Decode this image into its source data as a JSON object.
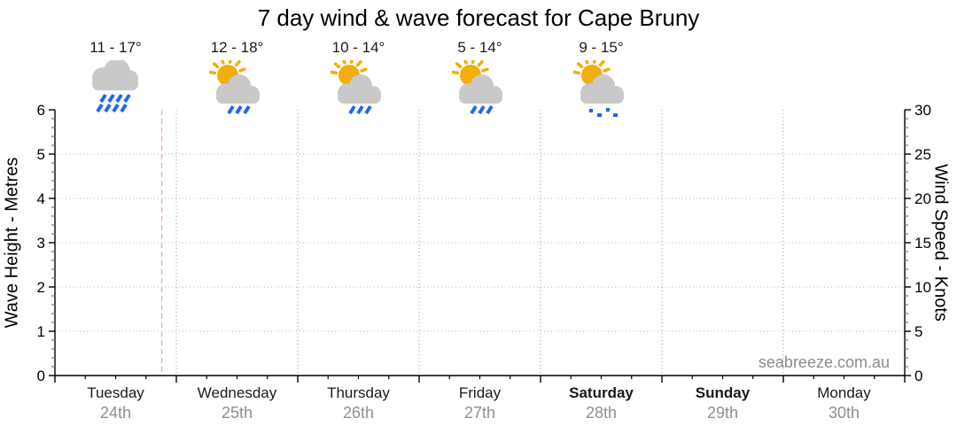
{
  "title": "7 day wind & wave forecast for Cape Bruny",
  "watermark": "seabreeze.com.au",
  "days": [
    {
      "name": "Tuesday",
      "date": "24th",
      "temp": "11 - 17°",
      "icon": "rain-cloud",
      "emphasis": false
    },
    {
      "name": "Wednesday",
      "date": "25th",
      "temp": "12 - 18°",
      "icon": "sun-cloud-rain",
      "emphasis": false
    },
    {
      "name": "Thursday",
      "date": "26th",
      "temp": "10 - 14°",
      "icon": "sun-cloud-rain",
      "emphasis": false
    },
    {
      "name": "Friday",
      "date": "27th",
      "temp": "5 - 14°",
      "icon": "sun-cloud-rain",
      "emphasis": false
    },
    {
      "name": "Saturday",
      "date": "28th",
      "temp": "9 - 15°",
      "icon": "sun-cloud-drizzle",
      "emphasis": true
    },
    {
      "name": "Sunday",
      "date": "29th",
      "temp": "",
      "icon": "",
      "emphasis": true
    },
    {
      "name": "Monday",
      "date": "30th",
      "temp": "",
      "icon": "",
      "emphasis": false
    }
  ],
  "chart_data": {
    "type": "line",
    "title": "7 day wind & wave forecast for Cape Bruny",
    "series": [],
    "x_axis": {
      "categories": [
        "Tuesday",
        "Wednesday",
        "Thursday",
        "Friday",
        "Saturday",
        "Sunday",
        "Monday"
      ],
      "dates": [
        "24th",
        "25th",
        "26th",
        "27th",
        "28th",
        "29th",
        "30th"
      ],
      "sub_ticks_per_day": 4,
      "grid_at_day_boundaries": true
    },
    "left_axis": {
      "label": "Wave Height - Metres",
      "range": [
        0,
        6
      ],
      "ticks": [
        0,
        1,
        2,
        3,
        4,
        5,
        6
      ],
      "minor_tick": 0.2,
      "gridlines": [
        1,
        2,
        3,
        4,
        5
      ]
    },
    "right_axis": {
      "label": "Wind Speed - Knots",
      "range": [
        0,
        30
      ],
      "ticks": [
        0,
        5,
        10,
        15,
        20,
        25,
        30
      ],
      "minor_tick": 1,
      "gridlines": [
        5,
        10,
        15,
        20,
        25
      ]
    },
    "now_marker": {
      "day": "Tuesday",
      "day_fraction": 0.88
    }
  },
  "colors": {
    "sun": "#F2AE0C",
    "cloud": "#C9C9C9",
    "rain": "#1C67EA",
    "now_line": "#F2A5A5",
    "h_grid": "#B3B3B3",
    "v_grid": "#9B9B9B",
    "axis": "#000000",
    "minor_tick": "#7A7A7A",
    "tick_label": "#000000",
    "day_label": "#1A1A1A",
    "date_label": "#8F8F8F",
    "watermark": "#8C8C8C"
  }
}
